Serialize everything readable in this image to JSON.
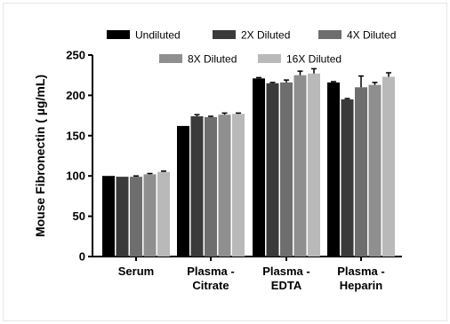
{
  "chart_data": {
    "type": "bar",
    "title": "",
    "xlabel": "",
    "ylabel": "Mouse Fibronectin ( µg/mL)",
    "ylim": [
      0,
      250
    ],
    "yticks": [
      0,
      50,
      100,
      150,
      200,
      250
    ],
    "grid": false,
    "legend_position": "top",
    "categories": [
      [
        "Serum"
      ],
      [
        "Plasma -",
        "Citrate"
      ],
      [
        "Plasma -",
        "EDTA"
      ],
      [
        "Plasma -",
        "Heparin"
      ]
    ],
    "series": [
      {
        "name": "Undiluted",
        "color": "#000000",
        "values": [
          100,
          162,
          221,
          216
        ],
        "errors": [
          0,
          0,
          1,
          1
        ]
      },
      {
        "name": "2X Diluted",
        "color": "#3a3a3a",
        "values": [
          99,
          174,
          215,
          195
        ],
        "errors": [
          0,
          2,
          1,
          1
        ]
      },
      {
        "name": "4X Diluted",
        "color": "#6e6e6e",
        "values": [
          99,
          173,
          216,
          210
        ],
        "errors": [
          1,
          1,
          3,
          14
        ]
      },
      {
        "name": "8X Diluted",
        "color": "#8f8f8f",
        "values": [
          102,
          176,
          225,
          213
        ],
        "errors": [
          1,
          2,
          5,
          3
        ]
      },
      {
        "name": "16X Diluted",
        "color": "#b9b9b9",
        "values": [
          105,
          177,
          227,
          223
        ],
        "errors": [
          1,
          1,
          6,
          5
        ]
      }
    ]
  }
}
